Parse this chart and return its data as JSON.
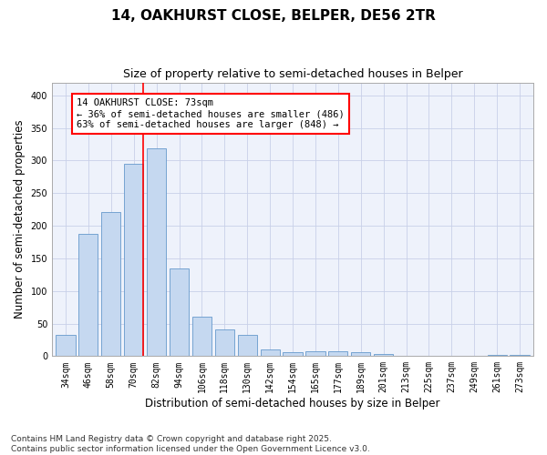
{
  "title1": "14, OAKHURST CLOSE, BELPER, DE56 2TR",
  "title2": "Size of property relative to semi-detached houses in Belper",
  "xlabel": "Distribution of semi-detached houses by size in Belper",
  "ylabel": "Number of semi-detached properties",
  "categories": [
    "34sqm",
    "46sqm",
    "58sqm",
    "70sqm",
    "82sqm",
    "94sqm",
    "106sqm",
    "118sqm",
    "130sqm",
    "142sqm",
    "154sqm",
    "165sqm",
    "177sqm",
    "189sqm",
    "201sqm",
    "213sqm",
    "225sqm",
    "237sqm",
    "249sqm",
    "261sqm",
    "273sqm"
  ],
  "values": [
    32,
    188,
    221,
    295,
    319,
    134,
    61,
    41,
    33,
    10,
    6,
    8,
    8,
    6,
    3,
    1,
    1,
    0,
    1,
    2,
    2
  ],
  "bar_color": "#c5d8f0",
  "bar_edge_color": "#6699cc",
  "red_line_x": 3,
  "annotation_text": "14 OAKHURST CLOSE: 73sqm\n← 36% of semi-detached houses are smaller (486)\n63% of semi-detached houses are larger (848) →",
  "annotation_box_color": "white",
  "annotation_box_edgecolor": "red",
  "ylim": [
    0,
    420
  ],
  "yticks": [
    0,
    50,
    100,
    150,
    200,
    250,
    300,
    350,
    400
  ],
  "footer_text": "Contains HM Land Registry data © Crown copyright and database right 2025.\nContains public sector information licensed under the Open Government Licence v3.0.",
  "bg_color": "#eef2fb",
  "grid_color": "#c8d0e8",
  "title_fontsize": 11,
  "subtitle_fontsize": 9,
  "tick_fontsize": 7,
  "label_fontsize": 8.5,
  "footer_fontsize": 6.5
}
